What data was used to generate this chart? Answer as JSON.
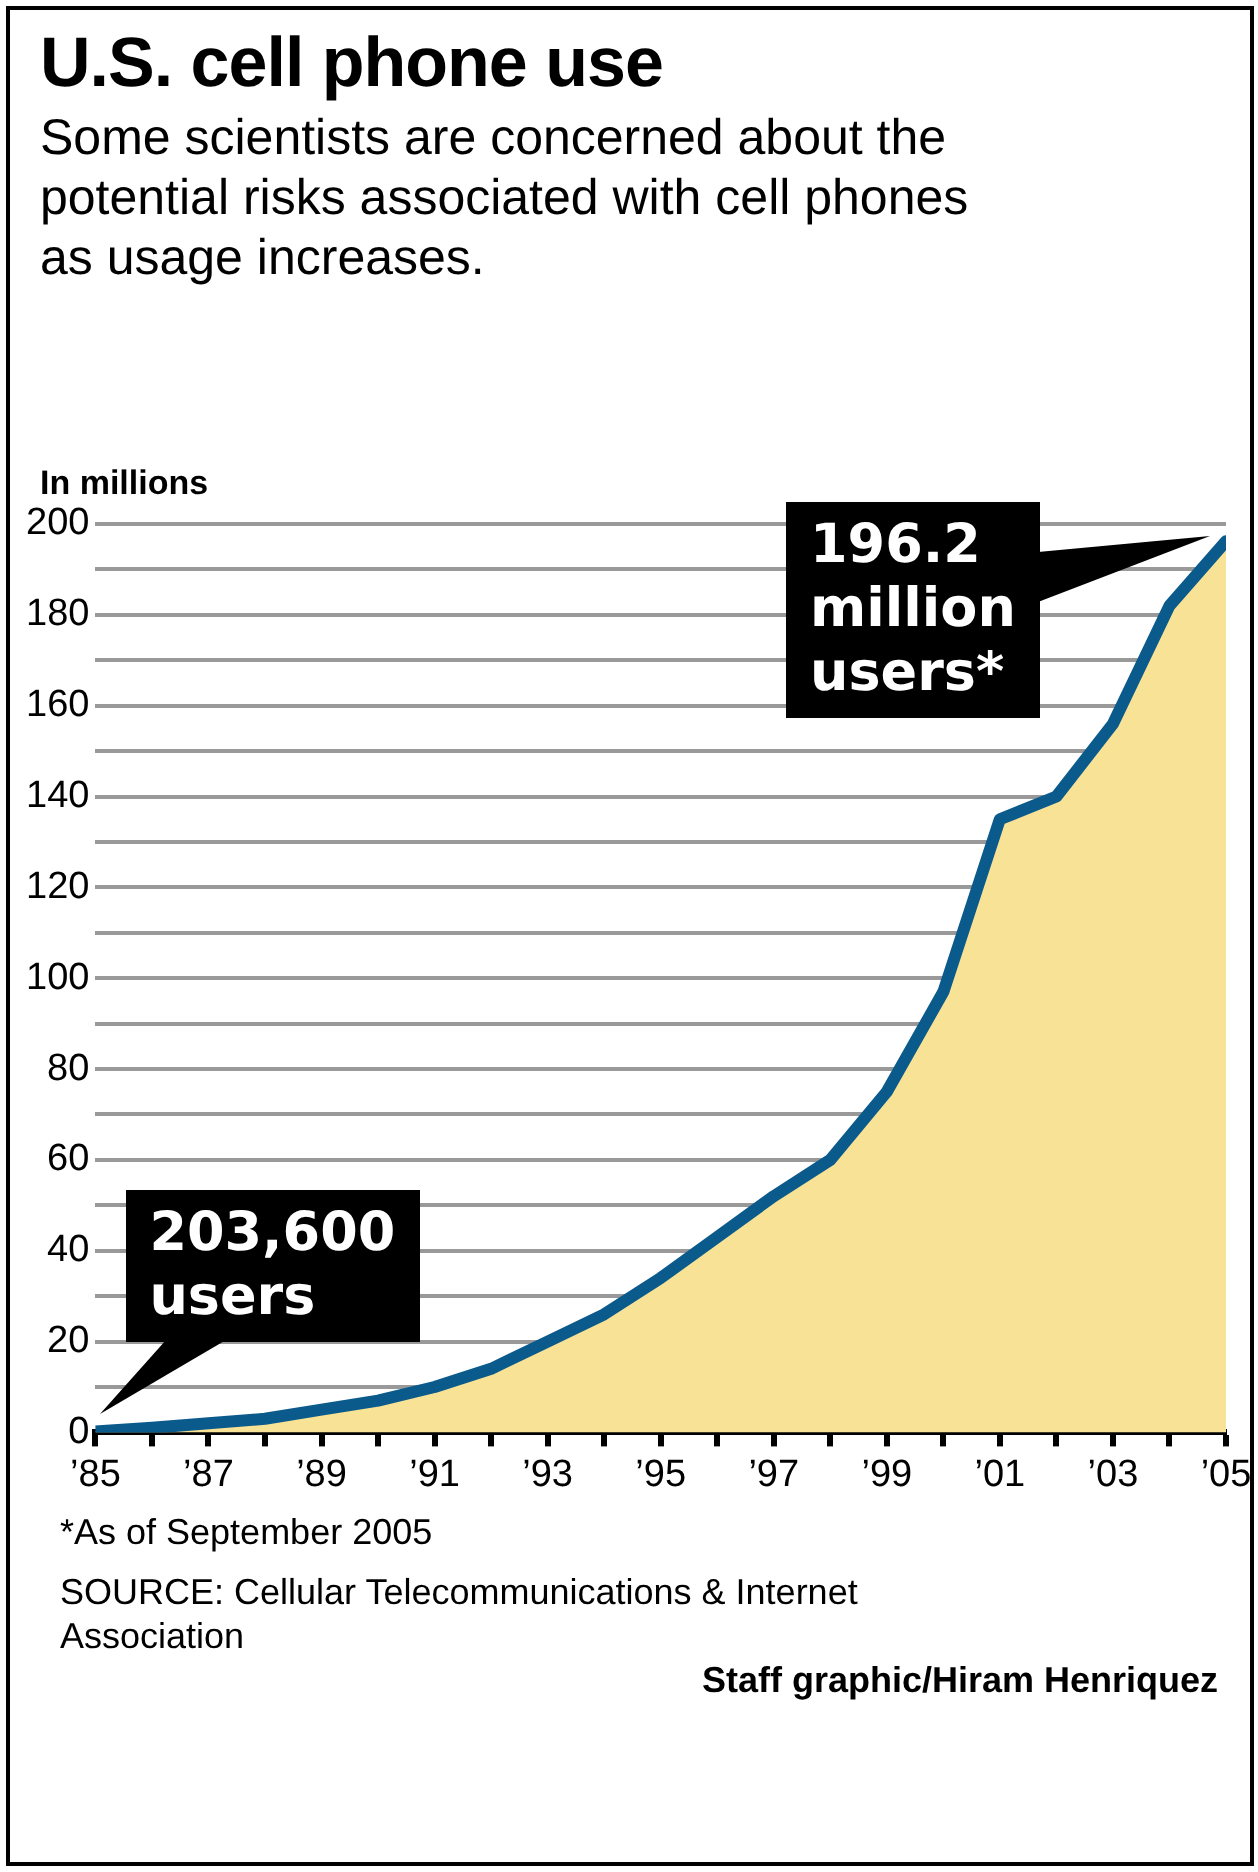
{
  "chart_data": {
    "type": "area",
    "title": "U.S. cell phone use",
    "subtitle": "Some scientists are concerned about the potential risks associated with cell phones as usage increases.",
    "ylabel": "In millions",
    "x": [
      1985,
      1986,
      1987,
      1988,
      1989,
      1990,
      1991,
      1992,
      1993,
      1994,
      1995,
      1996,
      1997,
      1998,
      1999,
      2000,
      2001,
      2002,
      2003,
      2004,
      2005
    ],
    "series": [
      {
        "color": "#f8e296",
        "values": [
          0.2036,
          1,
          2,
          3,
          5,
          7,
          10,
          14,
          20,
          26,
          34,
          43,
          52,
          60,
          75,
          97,
          135,
          140,
          156,
          182,
          196.2
        ]
      }
    ],
    "xlim": [
      1985,
      2005
    ],
    "xticks": [
      {
        "value": 1985,
        "label": "’85"
      },
      {
        "value": 1986,
        "label": null
      },
      {
        "value": 1987,
        "label": "’87"
      },
      {
        "value": 1988,
        "label": null
      },
      {
        "value": 1989,
        "label": "’89"
      },
      {
        "value": 1990,
        "label": null
      },
      {
        "value": 1991,
        "label": "’91"
      },
      {
        "value": 1992,
        "label": null
      },
      {
        "value": 1993,
        "label": "’93"
      },
      {
        "value": 1994,
        "label": null
      },
      {
        "value": 1995,
        "label": "’95"
      },
      {
        "value": 1996,
        "label": null
      },
      {
        "value": 1997,
        "label": "’97"
      },
      {
        "value": 1998,
        "label": null
      },
      {
        "value": 1999,
        "label": "’99"
      },
      {
        "value": 2000,
        "label": null
      },
      {
        "value": 2001,
        "label": "’01"
      },
      {
        "value": 2002,
        "label": null
      },
      {
        "value": 2003,
        "label": "’03"
      },
      {
        "value": 2004,
        "label": null
      },
      {
        "value": 2005,
        "label": "’05"
      }
    ],
    "ylim": [
      0,
      200
    ],
    "yticks": [
      0,
      {
        "value": 10,
        "label": null
      },
      20,
      {
        "value": 30,
        "label": null
      },
      40,
      {
        "value": 50,
        "label": null
      },
      60,
      {
        "value": 70,
        "label": null
      },
      80,
      {
        "value": 90,
        "label": null
      },
      100,
      {
        "value": 110,
        "label": null
      },
      120,
      {
        "value": 130,
        "label": null
      },
      140,
      {
        "value": 150,
        "label": null
      },
      160,
      {
        "value": 170,
        "label": null
      },
      180,
      {
        "value": 190,
        "label": null
      },
      200
    ],
    "grid": "y",
    "annotations": [
      {
        "text": "203,600 users",
        "x": 1985,
        "y": 0.2036
      },
      {
        "text": "196.2 million users*",
        "x": 2005,
        "y": 196.2
      },
      "*As of September 2005",
      "SOURCE: Cellular Telecommunications & Internet Association",
      "Staff graphic/Hiram Henriquez"
    ]
  }
}
